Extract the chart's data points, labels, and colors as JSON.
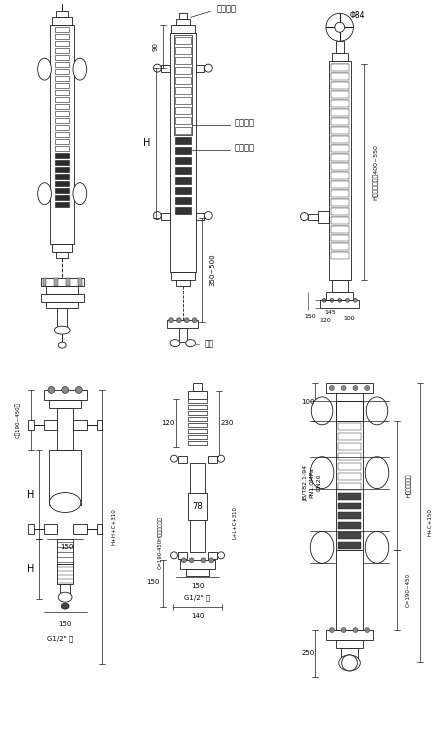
{
  "bg_color": "#ffffff",
  "line_color": "#1a1a1a",
  "fig_width": 4.33,
  "fig_height": 7.48,
  "dpi": 100,
  "labels": {
    "exhaust": "排气接口",
    "phi84": "Φ84",
    "white_above": "以上白色",
    "red_below": "以下红色",
    "drain": "排污",
    "H_range3": "H（测量范围）400~550",
    "C_190_450": "C（190~450）",
    "H_label": "H",
    "HHC310": "H+H+C+310",
    "G12_inner": "G1/2\" 内",
    "C190_450H": "C=190-450H（测量范围）",
    "LL_C310": "L+L+C+310",
    "H_range6": "H（测量范围）",
    "C_190_450b": "C=190~450",
    "HC150": "H+C+150",
    "JB": "JB/T82.1-94\nPN1.0MPa\nDN20",
    "d90": "90",
    "d350_500": "350~500",
    "d120": "120",
    "d150": "150",
    "d230": "230",
    "d78": "78",
    "d140": "140",
    "d100": "100",
    "d145": "145",
    "d250": "250"
  }
}
